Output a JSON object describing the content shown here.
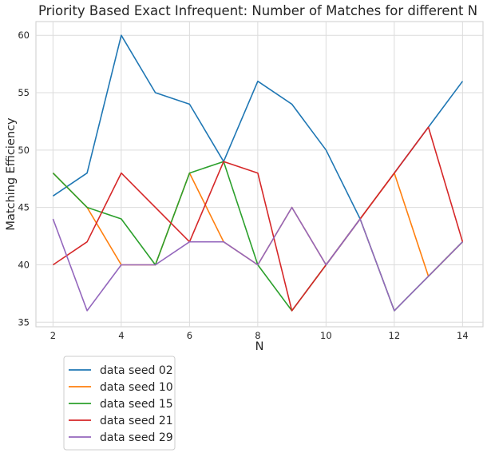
{
  "chart_data": {
    "type": "line",
    "title": "Priority Based Exact Infrequent: Number of Matches for different N",
    "xlabel": "N",
    "ylabel": "Matching Efficiency",
    "x": [
      2,
      3,
      4,
      5,
      6,
      7,
      8,
      9,
      10,
      11,
      12,
      13,
      14
    ],
    "xlim": [
      1.5,
      14.6
    ],
    "ylim": [
      34.6,
      61.2
    ],
    "xticks": [
      2,
      4,
      6,
      8,
      10,
      12,
      14
    ],
    "yticks": [
      35,
      40,
      45,
      50,
      55,
      60
    ],
    "grid": true,
    "legend": "below-left",
    "series": [
      {
        "name": "data seed 02",
        "color": "#1f77b4",
        "values": [
          46,
          48,
          60,
          55,
          54,
          49,
          56,
          54,
          50,
          44,
          48,
          52,
          56
        ]
      },
      {
        "name": "data seed 10",
        "color": "#ff7f0e",
        "values": [
          48,
          45,
          40,
          40,
          48,
          42,
          40,
          45,
          40,
          44,
          48,
          39,
          42
        ]
      },
      {
        "name": "data seed 15",
        "color": "#2ca02c",
        "values": [
          48,
          45,
          44,
          40,
          48,
          49,
          40,
          36,
          40,
          44,
          36,
          39,
          42
        ]
      },
      {
        "name": "data seed 21",
        "color": "#d62728",
        "values": [
          40,
          42,
          48,
          45,
          42,
          49,
          48,
          36,
          40,
          44,
          48,
          52,
          42
        ]
      },
      {
        "name": "data seed 29",
        "color": "#9467bd",
        "values": [
          44,
          36,
          40,
          40,
          42,
          42,
          40,
          45,
          40,
          44,
          36,
          39,
          42
        ]
      }
    ]
  }
}
